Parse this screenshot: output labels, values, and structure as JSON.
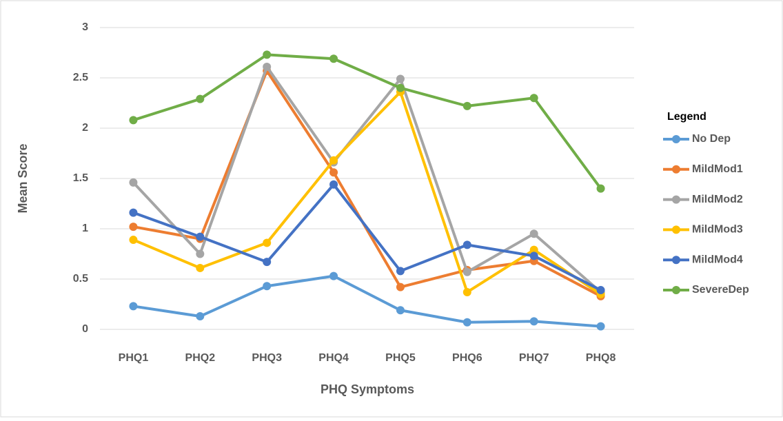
{
  "chart_data": {
    "type": "line",
    "y_label": "Mean Score",
    "x_label": "PHQ Symptoms",
    "legend_title": "Legend",
    "categories": [
      "PHQ1",
      "PHQ2",
      "PHQ3",
      "PHQ4",
      "PHQ5",
      "PHQ6",
      "PHQ7",
      "PHQ8"
    ],
    "series": [
      {
        "name": "No Dep",
        "color": "#5b9bd5",
        "values": [
          0.23,
          0.13,
          0.43,
          0.53,
          0.19,
          0.07,
          0.08,
          0.03
        ]
      },
      {
        "name": "MildMod1",
        "color": "#ed7d31",
        "values": [
          1.02,
          0.9,
          2.57,
          1.56,
          0.42,
          0.59,
          0.68,
          0.33
        ]
      },
      {
        "name": "MildMod2",
        "color": "#a5a5a5",
        "values": [
          1.46,
          0.75,
          2.61,
          1.66,
          2.49,
          0.57,
          0.95,
          0.37
        ]
      },
      {
        "name": "MildMod3",
        "color": "#ffc000",
        "values": [
          0.89,
          0.61,
          0.86,
          1.68,
          2.36,
          0.37,
          0.79,
          0.35
        ]
      },
      {
        "name": "MildMod4",
        "color": "#4472c4",
        "values": [
          1.16,
          0.92,
          0.67,
          1.44,
          0.58,
          0.84,
          0.73,
          0.39
        ]
      },
      {
        "name": "SevereDep",
        "color": "#70ad47",
        "values": [
          2.08,
          2.29,
          2.73,
          2.69,
          2.4,
          2.22,
          2.3,
          1.4
        ]
      }
    ],
    "ylim": [
      0,
      3
    ],
    "yticks": [
      0,
      0.5,
      1,
      1.5,
      2,
      2.5,
      3
    ],
    "grid": true,
    "legend": "right"
  }
}
